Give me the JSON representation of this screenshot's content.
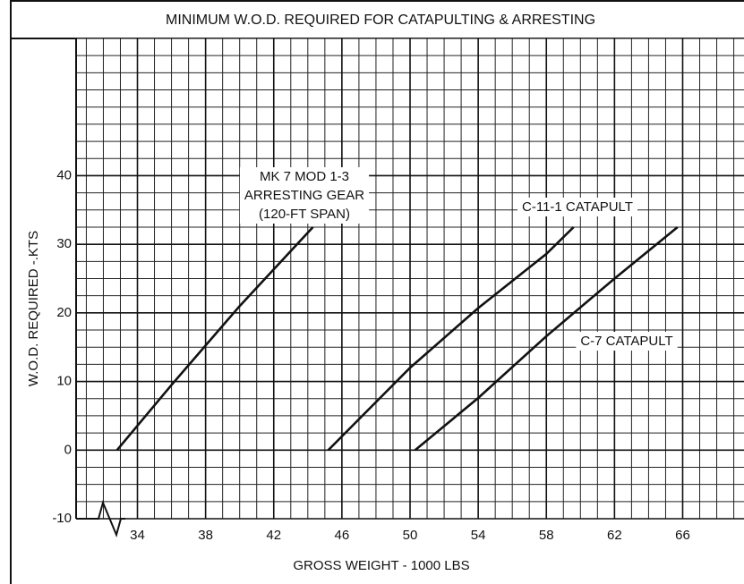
{
  "chart_data": {
    "type": "line",
    "title": "MINIMUM W.O.D. REQUIRED FOR CATAPULTING & ARRESTING",
    "x_label": "GROSS WEIGHT - 1000 LBS",
    "y_label": "W.O.D. REQUIRED -.KTS",
    "xlim": [
      30.4,
      69.6
    ],
    "ylim": [
      -10,
      60
    ],
    "xticks": [
      34,
      38,
      42,
      46,
      50,
      54,
      58,
      62,
      66
    ],
    "yticks": [
      -10,
      0,
      10,
      20,
      30,
      40
    ],
    "grid": true,
    "minor_grid": {
      "x": 1,
      "y": 2.5
    },
    "series": [
      {
        "name_lines": [
          "MK 7 MOD 1-3",
          "ARRESTING GEAR",
          "(120-FT SPAN)"
        ],
        "color": "#111111",
        "x": [
          32.8,
          36,
          40,
          44.3
        ],
        "values": [
          0,
          9.5,
          21,
          32.5
        ]
      },
      {
        "name_lines": [
          "C-11-1 CATAPULT"
        ],
        "color": "#111111",
        "x": [
          45.2,
          50,
          54,
          58,
          59.6
        ],
        "values": [
          0,
          12,
          20.7,
          28.6,
          32.5
        ]
      },
      {
        "name_lines": [
          "C-7 CATAPULT"
        ],
        "color": "#111111",
        "x": [
          50.3,
          54,
          58,
          62,
          65.7
        ],
        "values": [
          0,
          7.6,
          16.6,
          25,
          32.5
        ]
      }
    ]
  }
}
